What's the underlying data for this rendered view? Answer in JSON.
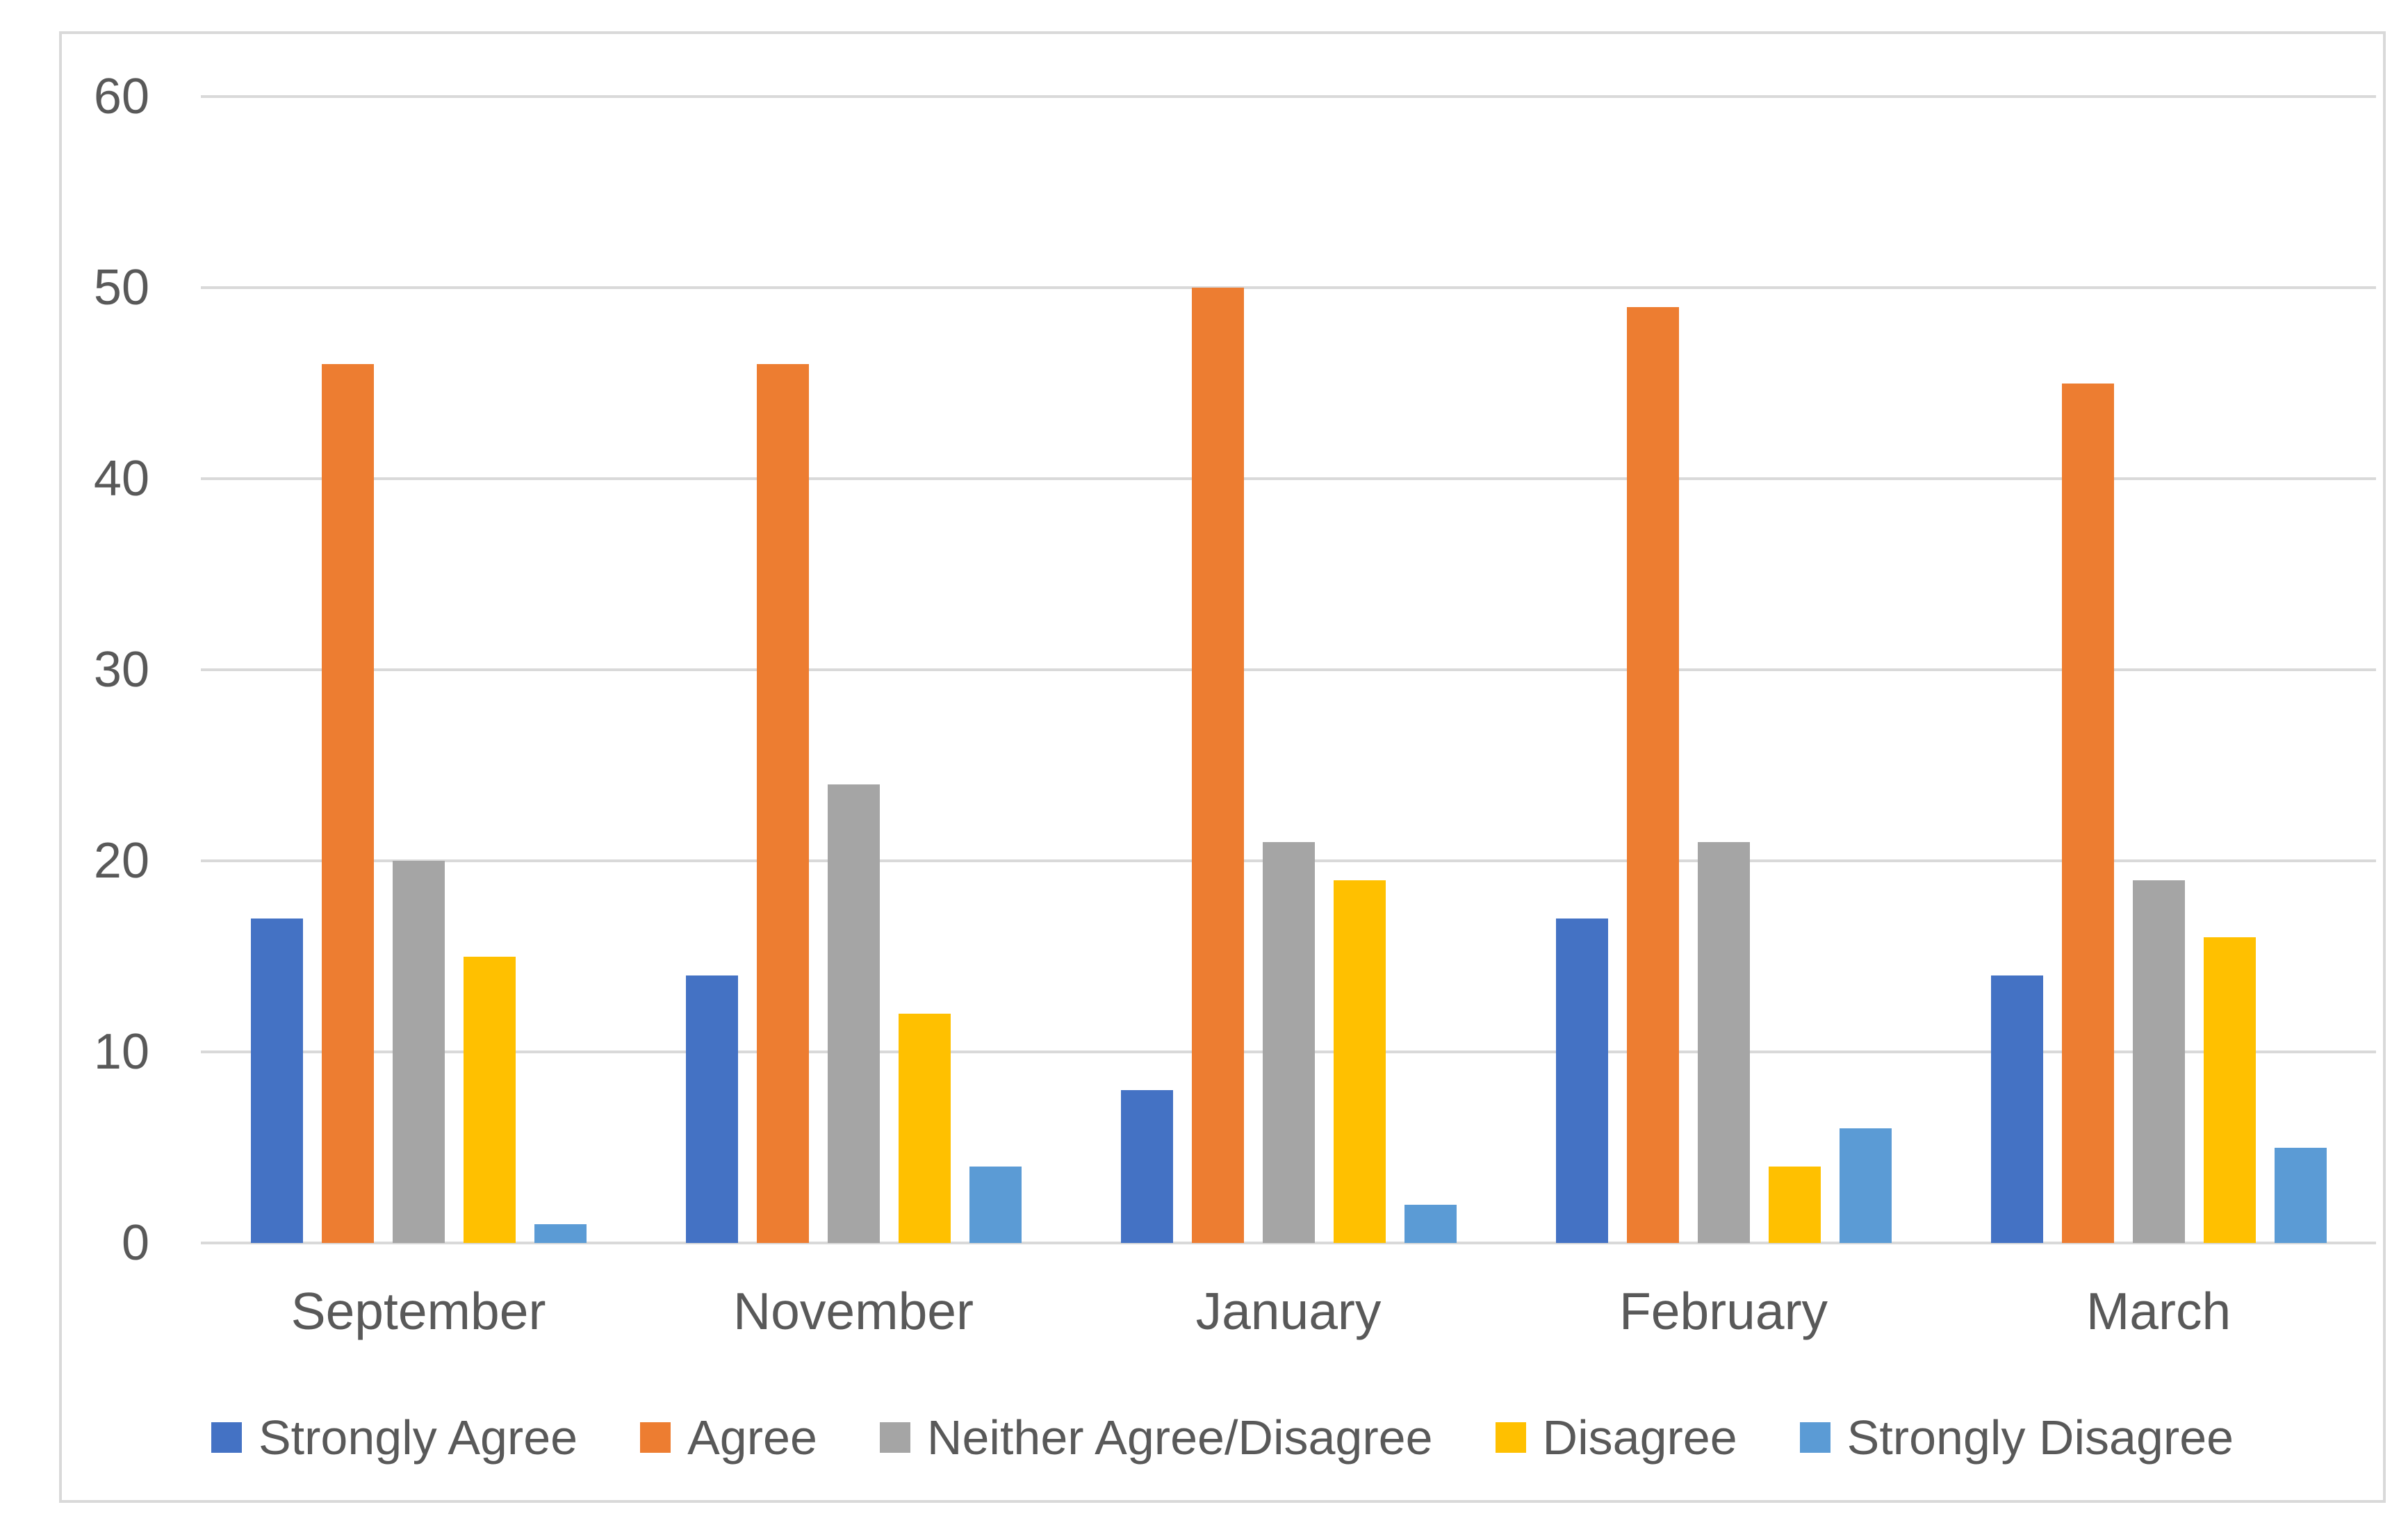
{
  "chart_data": {
    "type": "bar",
    "title": "",
    "xlabel": "",
    "ylabel": "",
    "categories": [
      "September",
      "November",
      "January",
      "February",
      "March"
    ],
    "series": [
      {
        "name": "Strongly Agree",
        "color": "#4472C4",
        "values": [
          17,
          14,
          8,
          17,
          14
        ]
      },
      {
        "name": "Agree",
        "color": "#ED7D31",
        "values": [
          46,
          46,
          50,
          49,
          45
        ]
      },
      {
        "name": "Neither Agree/Disagree",
        "color": "#A5A5A5",
        "values": [
          20,
          24,
          21,
          21,
          19
        ]
      },
      {
        "name": "Disagree",
        "color": "#FFC000",
        "values": [
          15,
          12,
          19,
          4,
          16
        ]
      },
      {
        "name": "Strongly Disagree",
        "color": "#5B9BD5",
        "values": [
          1,
          4,
          2,
          6,
          5
        ]
      }
    ],
    "y_axis": {
      "min": 0,
      "max": 60,
      "tick_step": 10,
      "ticks": [
        0,
        10,
        20,
        30,
        40,
        50,
        60
      ]
    },
    "grid": true,
    "legend_position": "bottom",
    "colors": {
      "gridline": "#D9D9D9",
      "axis_line": "#D9D9D9",
      "chart_border": "#D9D9D9",
      "tick_label": "#595959",
      "category_label": "#595959",
      "legend_label": "#595959",
      "background": "#FFFFFF"
    }
  }
}
